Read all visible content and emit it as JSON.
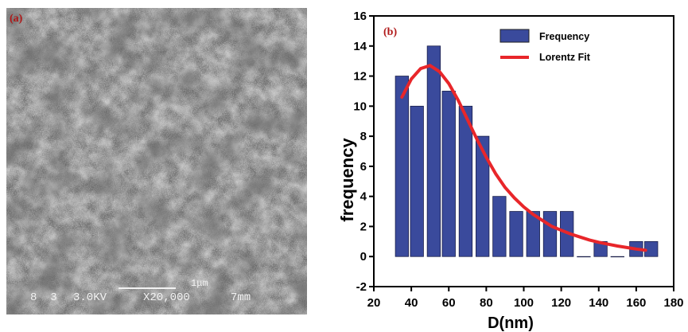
{
  "panel_a": {
    "tag": "(a)",
    "scale_label": "1μm",
    "info_id": "8  3",
    "info_kv": "3.0KV",
    "info_mag": "X20,000",
    "info_wd": "7mm"
  },
  "chart_data": {
    "type": "bar",
    "panel_tag": "(b)",
    "xlabel": "D(nm)",
    "ylabel": "frequency",
    "xlim": [
      20,
      180
    ],
    "ylim": [
      -2,
      16
    ],
    "xticks": [
      20,
      40,
      60,
      80,
      100,
      120,
      140,
      160,
      180
    ],
    "yticks": [
      -2,
      0,
      2,
      4,
      6,
      8,
      10,
      12,
      14,
      16
    ],
    "legend_position": "top-right",
    "grid": false,
    "bar_width": 7,
    "bars": {
      "name": "Frequency",
      "color": "#3a4a9c",
      "x": [
        35,
        43,
        52,
        60,
        69,
        78,
        87,
        96,
        105,
        114,
        123,
        132,
        141,
        150,
        160,
        168
      ],
      "values": [
        12,
        10,
        14,
        11,
        10,
        8,
        4,
        3,
        3,
        3,
        3,
        0,
        1,
        0,
        1,
        1
      ]
    },
    "fit": {
      "name": "Lorentz Fit",
      "color": "#e8262a",
      "x": [
        35,
        40,
        45,
        50,
        55,
        60,
        65,
        70,
        75,
        80,
        85,
        90,
        95,
        100,
        105,
        110,
        115,
        120,
        125,
        130,
        135,
        140,
        145,
        150,
        155,
        160,
        165
      ],
      "values": [
        10.6,
        11.8,
        12.5,
        12.7,
        12.3,
        11.5,
        10.4,
        9.1,
        7.8,
        6.6,
        5.5,
        4.6,
        3.9,
        3.3,
        2.8,
        2.4,
        2.0,
        1.75,
        1.5,
        1.3,
        1.1,
        0.95,
        0.82,
        0.7,
        0.6,
        0.5,
        0.42
      ]
    }
  }
}
